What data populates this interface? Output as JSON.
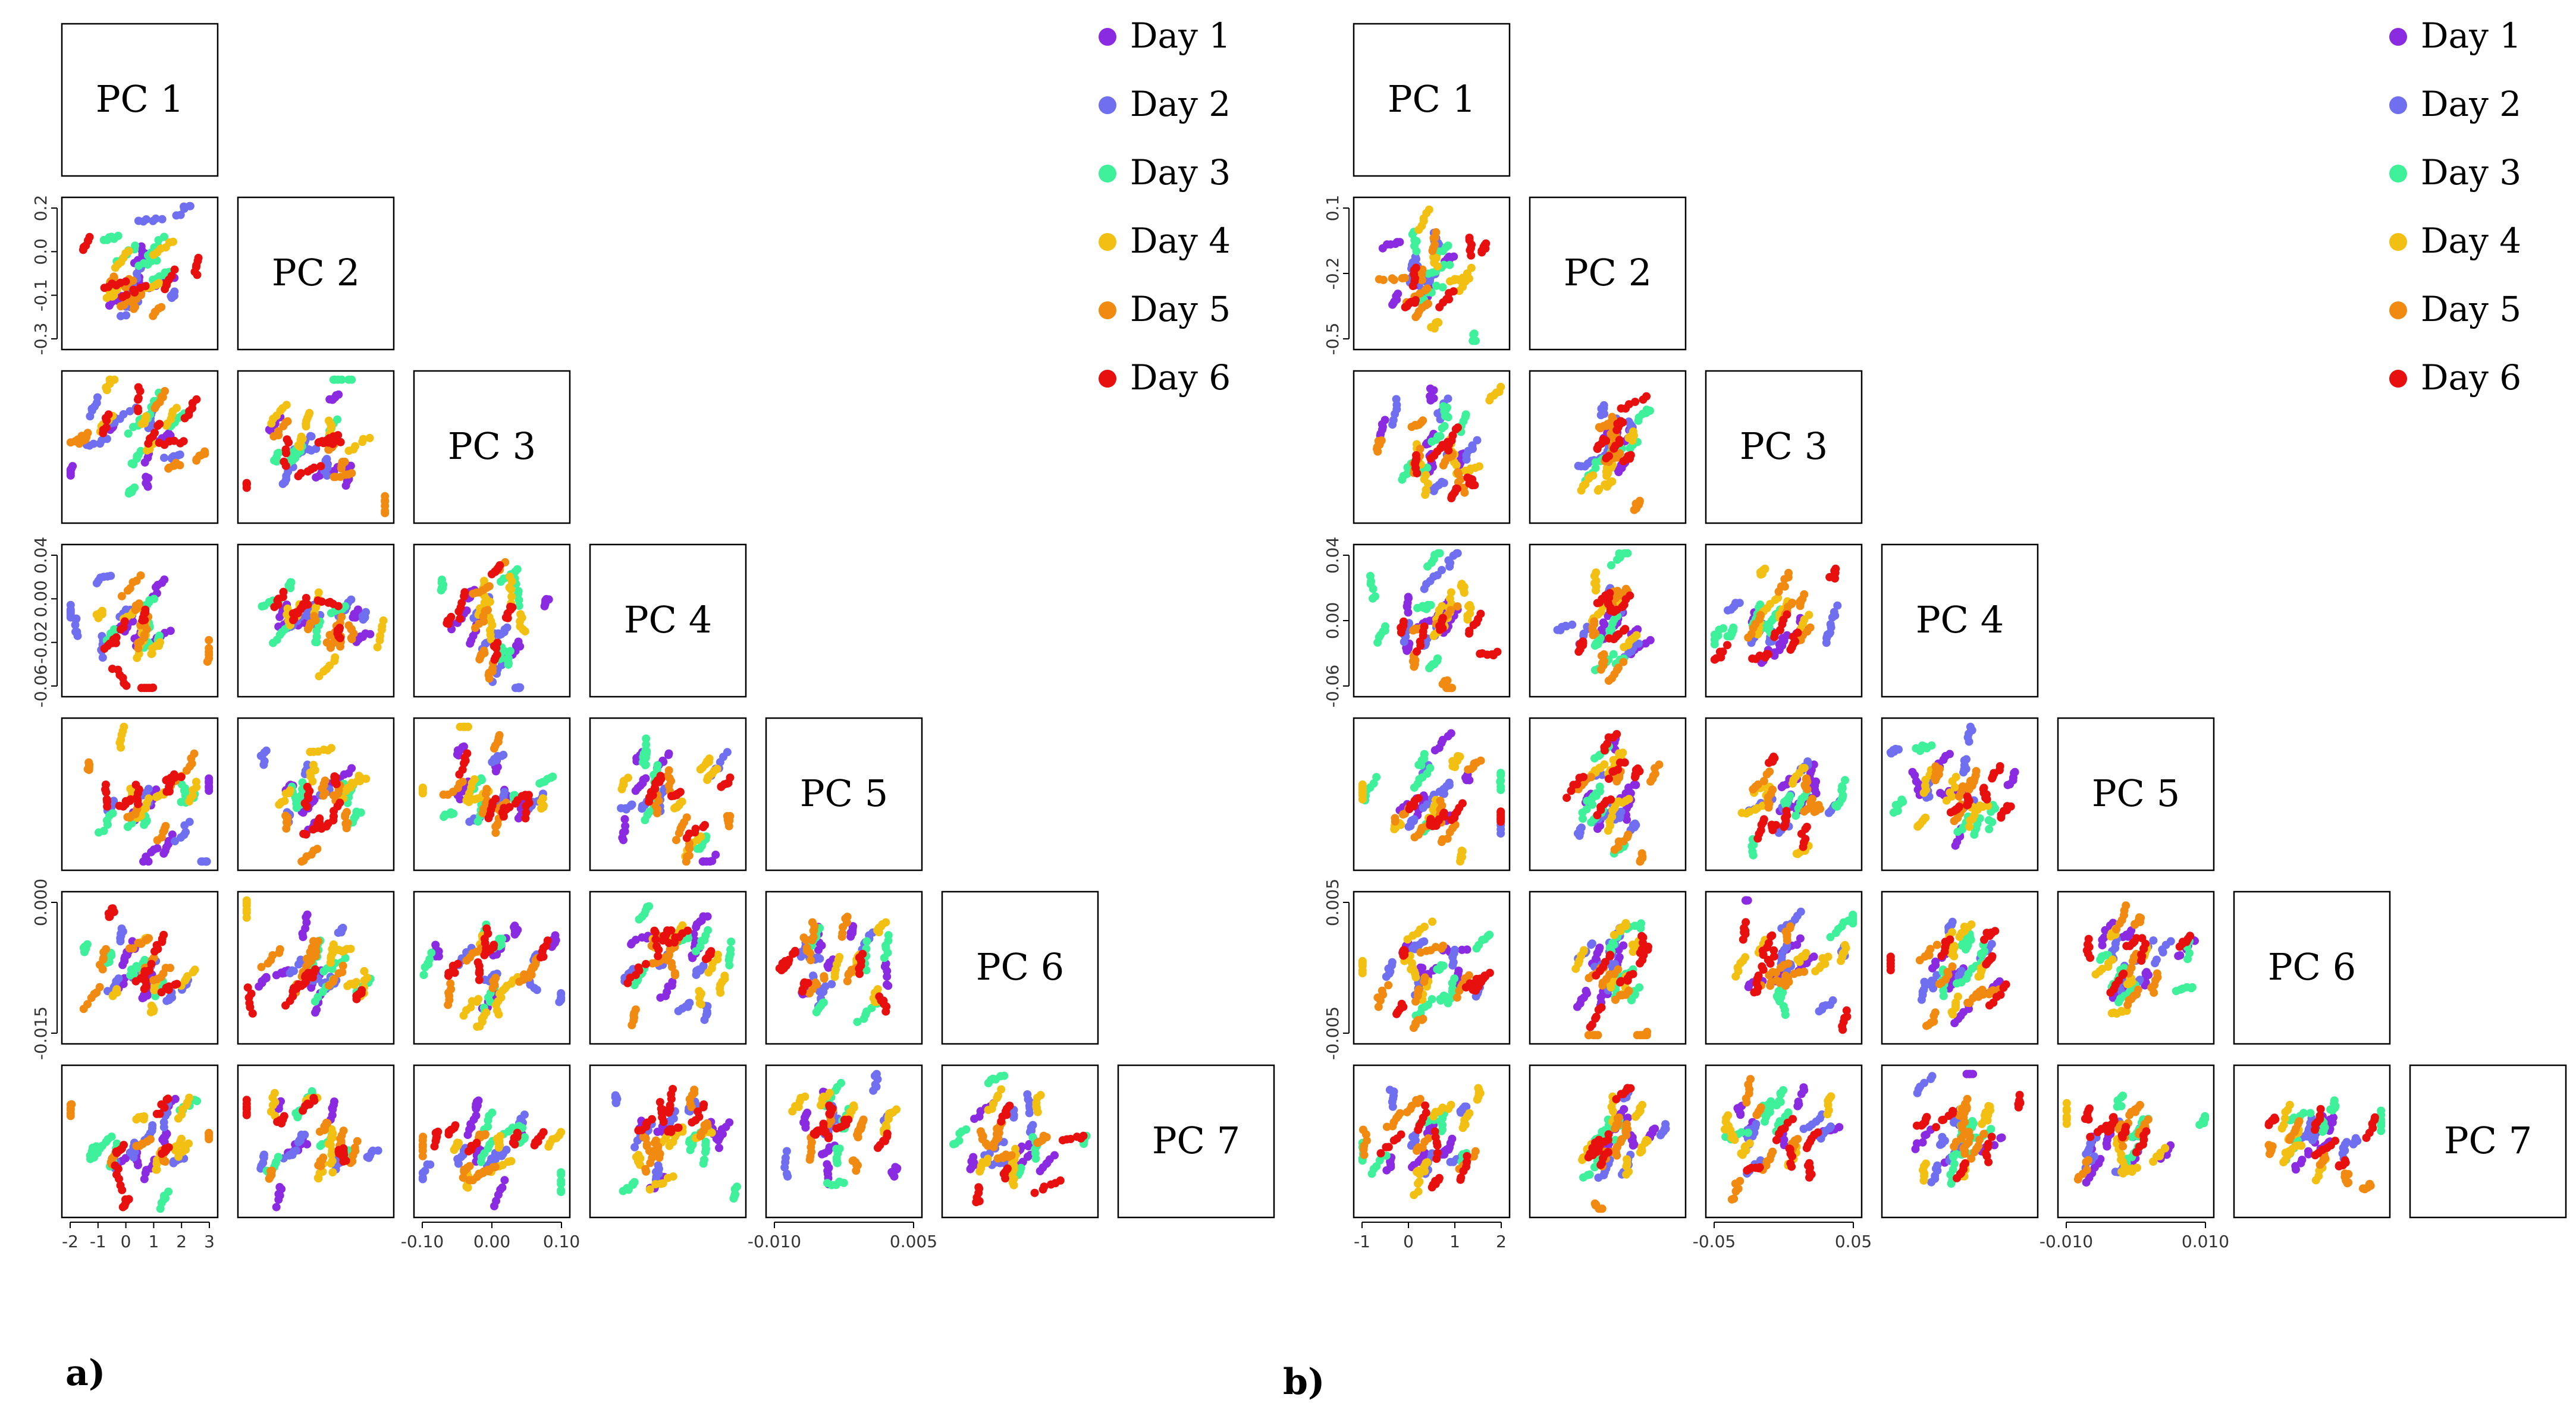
{
  "legend": [
    {
      "label": "Day 1",
      "color": "#8a2be2"
    },
    {
      "label": "Day 2",
      "color": "#6f6ff0"
    },
    {
      "label": "Day 3",
      "color": "#3ef09a"
    },
    {
      "label": "Day 4",
      "color": "#f2c012"
    },
    {
      "label": "Day 5",
      "color": "#f08a10"
    },
    {
      "label": "Day 6",
      "color": "#e8100f"
    }
  ],
  "diagonal_labels": [
    "PC 1",
    "PC 2",
    "PC 3",
    "PC 4",
    "PC 5",
    "PC 6",
    "PC 7"
  ],
  "chart_data": [
    {
      "type": "scatter",
      "panel": "a)",
      "kind": "scatterplot matrix (lower triangle)",
      "variables": [
        "PC 1",
        "PC 2",
        "PC 3",
        "PC 4",
        "PC 5",
        "PC 6",
        "PC 7"
      ],
      "groups": [
        "Day 1",
        "Day 2",
        "Day 3",
        "Day 4",
        "Day 5",
        "Day 6"
      ],
      "axes": {
        "PC 1": {
          "range": [
            -2.4,
            3.4
          ],
          "ticks": [
            "-2",
            "-1",
            "0",
            "1",
            "2",
            "3"
          ]
        },
        "PC 2": {
          "range": [
            -0.36,
            0.26
          ],
          "ticks": [
            "-0.3",
            "-0.1",
            "0.0",
            "0.2"
          ]
        },
        "PC 3": {
          "range": [
            -0.14,
            0.14
          ],
          "ticks": [
            "-0.10",
            "0.00",
            "0.10"
          ]
        },
        "PC 4": {
          "range": [
            -0.07,
            0.055
          ],
          "ticks": [
            "-0.06",
            "-0.02",
            "0.00",
            "0.04"
          ]
        },
        "PC 5": {
          "range": [
            -0.015,
            0.012
          ],
          "ticks": [
            "-0.010",
            "0.005"
          ]
        },
        "PC 6": {
          "range": [
            -0.019,
            0.008
          ],
          "ticks": [
            "-0.015",
            "0.000"
          ]
        },
        "PC 7": {
          "range": [
            -0.01,
            0.01
          ],
          "ticks": []
        }
      }
    },
    {
      "type": "scatter",
      "panel": "b)",
      "kind": "scatterplot matrix (lower triangle)",
      "variables": [
        "PC 1",
        "PC 2",
        "PC 3",
        "PC 4",
        "PC 5",
        "PC 6",
        "PC 7"
      ],
      "groups": [
        "Day 1",
        "Day 2",
        "Day 3",
        "Day 4",
        "Day 5",
        "Day 6"
      ],
      "axes": {
        "PC 1": {
          "range": [
            -1.6,
            2.7
          ],
          "ticks": [
            "-1",
            "0",
            "1",
            "2"
          ]
        },
        "PC 2": {
          "range": [
            -0.58,
            0.18
          ],
          "ticks": [
            "-0.5",
            "-0.2",
            "0.1"
          ]
        },
        "PC 3": {
          "range": [
            -0.085,
            0.095
          ],
          "ticks": [
            "-0.05",
            "0.05"
          ]
        },
        "PC 4": {
          "range": [
            -0.07,
            0.048
          ],
          "ticks": [
            "-0.06",
            "0.00",
            "0.04"
          ]
        },
        "PC 5": {
          "range": [
            -0.015,
            0.03
          ],
          "ticks": [
            "-0.010",
            "0.010"
          ]
        },
        "PC 6": {
          "range": [
            -0.009,
            0.008
          ],
          "ticks": [
            "-0.005",
            "0.005"
          ]
        },
        "PC 7": {
          "range": [
            -0.01,
            0.01
          ],
          "ticks": []
        }
      }
    }
  ]
}
